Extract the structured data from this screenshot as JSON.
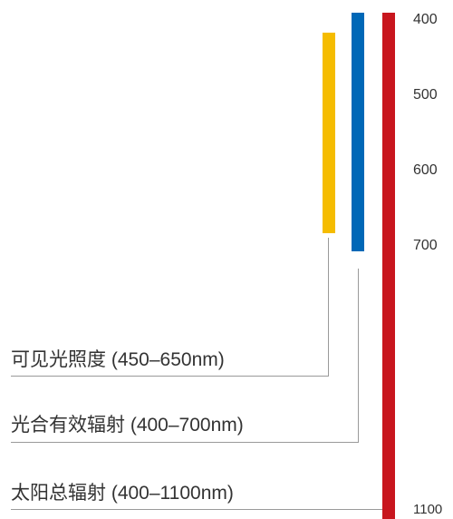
{
  "ticks": {
    "t400": "400",
    "t500": "500",
    "t600": "600",
    "t700": "700",
    "t1100": "1100"
  },
  "bands": {
    "visible": {
      "label": "可见光照度 (450–650nm)",
      "range_nm": [
        450,
        650
      ],
      "color": "#F5BC00"
    },
    "par": {
      "label": "光合有效辐射 (400–700nm)",
      "range_nm": [
        400,
        700
      ],
      "color": "#0068B7"
    },
    "solar": {
      "label": "太阳总辐射 (400–1100nm)",
      "range_nm": [
        400,
        1100
      ],
      "color": "#C8161E"
    }
  }
}
